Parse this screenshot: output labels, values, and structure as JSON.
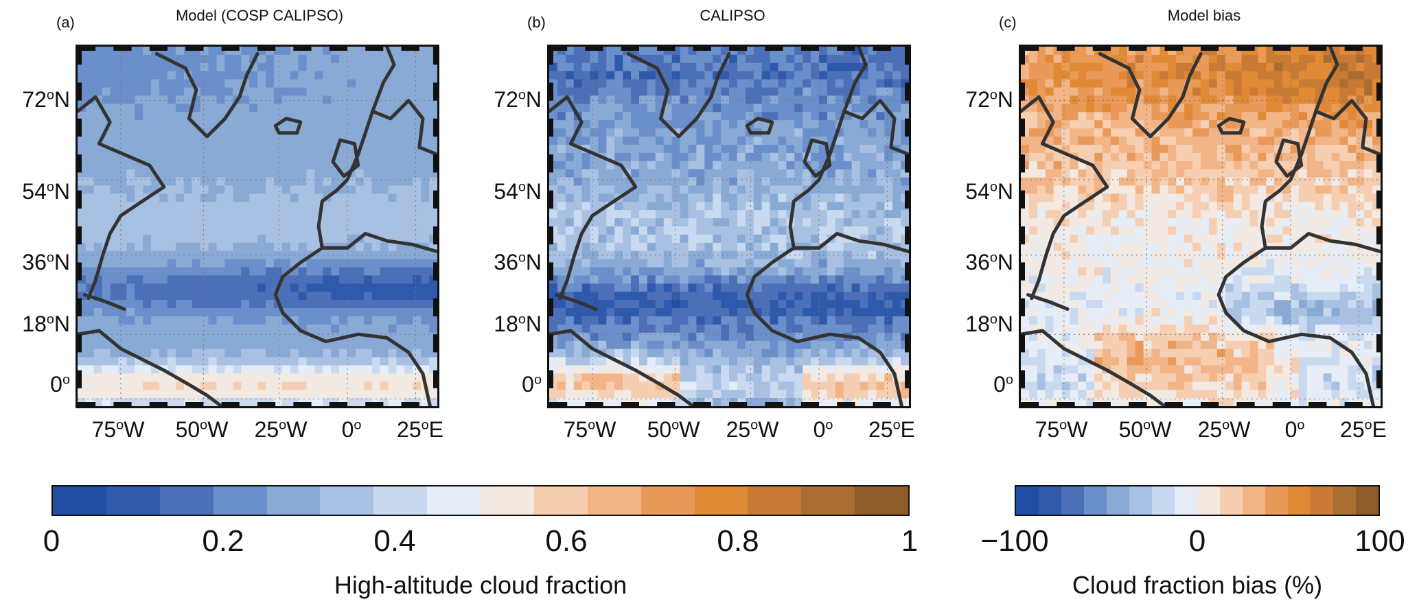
{
  "panels": [
    {
      "tag": "(a)",
      "title": "Model (COSP CALIPSO)"
    },
    {
      "tag": "(b)",
      "title": "CALIPSO"
    },
    {
      "tag": "(c)",
      "title": "Model bias"
    }
  ],
  "lat_labels": [
    {
      "deg": "72",
      "sup": "o",
      "hemi": "N"
    },
    {
      "deg": "54",
      "sup": "o",
      "hemi": "N"
    },
    {
      "deg": "36",
      "sup": "o",
      "hemi": "N"
    },
    {
      "deg": "18",
      "sup": "o",
      "hemi": "N"
    },
    {
      "deg": "0",
      "sup": "o",
      "hemi": ""
    }
  ],
  "lon_labels": [
    {
      "deg": "75",
      "sup": "o",
      "hemi": "W"
    },
    {
      "deg": "50",
      "sup": "o",
      "hemi": "W"
    },
    {
      "deg": "25",
      "sup": "o",
      "hemi": "W"
    },
    {
      "deg": "0",
      "sup": "o",
      "hemi": ""
    },
    {
      "deg": "25",
      "sup": "o",
      "hemi": "E"
    }
  ],
  "colorbar_left": {
    "ticks": [
      "0",
      "0.2",
      "0.4",
      "0.6",
      "0.8",
      "1"
    ],
    "title": "High-altitude cloud fraction",
    "colors": [
      "#1f4ea3",
      "#2f5aab",
      "#4d6fb8",
      "#6b8fca",
      "#8aaad6",
      "#a8c1e3",
      "#c9d9ef",
      "#e6edf6",
      "#f2e9e2",
      "#f6cfb3",
      "#f2b588",
      "#e99a58",
      "#e08a36",
      "#c97a35",
      "#a96d32",
      "#8e5c2b"
    ]
  },
  "colorbar_right": {
    "ticks": [
      "−100",
      "0",
      "100"
    ],
    "title": "Cloud fraction bias (%)",
    "colors": [
      "#1f4ea3",
      "#2f5aab",
      "#4d6fb8",
      "#6b8fca",
      "#8aaad6",
      "#a8c1e3",
      "#c9d9ef",
      "#e6edf6",
      "#f2e9e2",
      "#f6cfb3",
      "#f2b588",
      "#e99a58",
      "#e08a36",
      "#c97a35",
      "#a96d32",
      "#8e5c2b"
    ]
  },
  "colors": {
    "coast": "#333333",
    "grid": "#777777"
  }
}
